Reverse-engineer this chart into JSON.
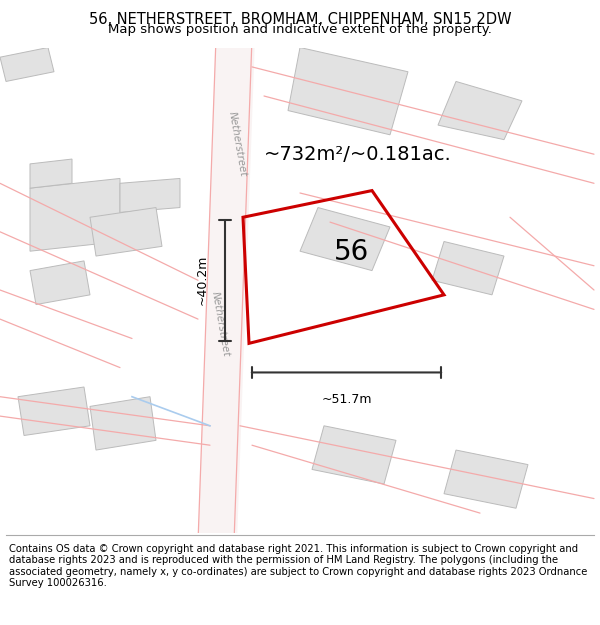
{
  "title_line1": "56, NETHERSTREET, BROMHAM, CHIPPENHAM, SN15 2DW",
  "title_line2": "Map shows position and indicative extent of the property.",
  "footer_text": "Contains OS data © Crown copyright and database right 2021. This information is subject to Crown copyright and database rights 2023 and is reproduced with the permission of HM Land Registry. The polygons (including the associated geometry, namely x, y co-ordinates) are subject to Crown copyright and database rights 2023 Ordnance Survey 100026316.",
  "area_label": "~732m²/~0.181ac.",
  "property_number": "56",
  "dim_width": "~51.7m",
  "dim_height": "~40.2m",
  "street_label": "Netherstreet",
  "red_color": "#cc0000",
  "dim_color": "#333333",
  "building_face": "#e2e2e2",
  "building_edge": "#bbbbbb",
  "road_line_color": "#f4aaaa",
  "road_fill_color": "#faf0f0",
  "title_fontsize": 10.5,
  "subtitle_fontsize": 9.5,
  "footer_fontsize": 7.2,
  "area_fontsize": 14,
  "num_fontsize": 20,
  "dim_fontsize": 9
}
